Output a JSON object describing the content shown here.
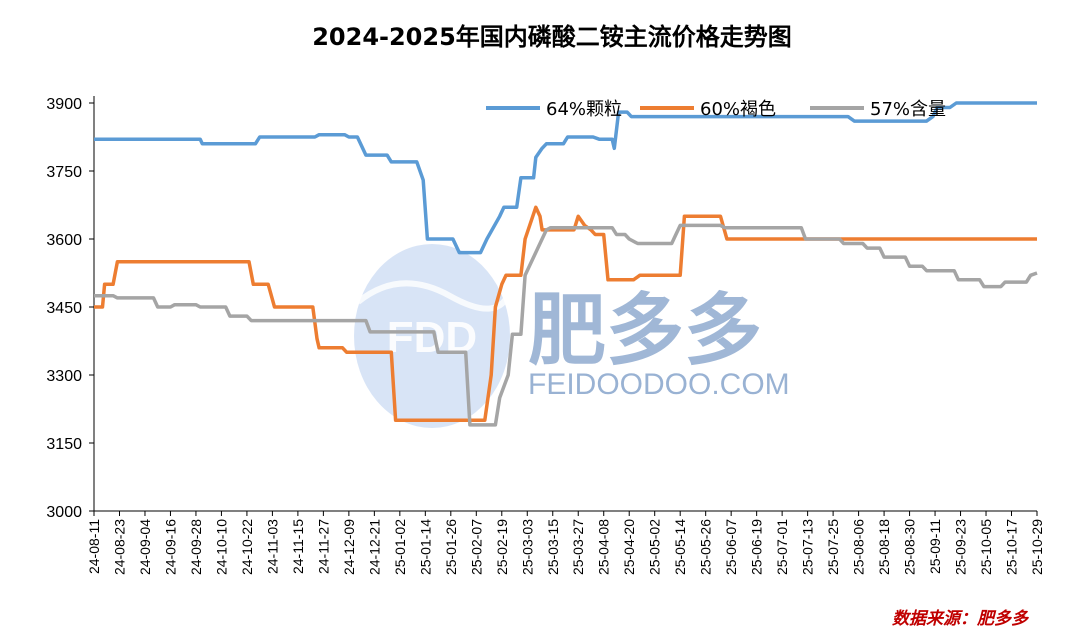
{
  "chart_data": {
    "type": "line",
    "title": "2024-2025年国内磷酸二铵主流价格走势图",
    "source": "数据来源：肥多多",
    "watermark": {
      "logo_text": "FDD",
      "brand_cn": "肥多多",
      "brand_en": "FEIDOODOO.COM"
    },
    "ylim": [
      3000,
      3900
    ],
    "yticks": [
      3000,
      3150,
      3300,
      3450,
      3600,
      3750,
      3900
    ],
    "xlabels": [
      "24-08-11",
      "24-08-23",
      "24-09-04",
      "24-09-16",
      "24-09-28",
      "24-10-10",
      "24-10-22",
      "24-11-03",
      "24-11-15",
      "24-11-27",
      "24-12-09",
      "24-12-21",
      "25-01-02",
      "25-01-14",
      "25-01-26",
      "25-02-07",
      "25-02-19",
      "25-03-03",
      "25-03-15",
      "25-03-27",
      "25-04-08",
      "25-04-20",
      "25-05-02",
      "25-05-14",
      "25-05-26",
      "25-06-07",
      "25-06-19",
      "25-07-01",
      "25-07-13",
      "25-07-25",
      "25-08-06",
      "25-08-18",
      "25-08-30",
      "25-09-11",
      "25-09-23",
      "25-10-05",
      "25-10-17",
      "25-10-29"
    ],
    "legend_position": "top-right",
    "grid": false,
    "series": [
      {
        "name": "64%颗粒",
        "color": "#5b9bd5",
        "points": [
          [
            "24-08-11",
            3820
          ],
          [
            "24-09-30",
            3820
          ],
          [
            "24-10-01",
            3810
          ],
          [
            "24-10-26",
            3810
          ],
          [
            "24-10-28",
            3825
          ],
          [
            "24-11-23",
            3825
          ],
          [
            "24-11-25",
            3830
          ],
          [
            "24-12-07",
            3830
          ],
          [
            "24-12-09",
            3825
          ],
          [
            "24-12-13",
            3825
          ],
          [
            "24-12-17",
            3785
          ],
          [
            "24-12-27",
            3785
          ],
          [
            "24-12-29",
            3770
          ],
          [
            "25-01-10",
            3770
          ],
          [
            "25-01-13",
            3730
          ],
          [
            "25-01-15",
            3600
          ],
          [
            "25-01-27",
            3600
          ],
          [
            "25-01-30",
            3570
          ],
          [
            "25-02-09",
            3570
          ],
          [
            "25-02-12",
            3600
          ],
          [
            "25-02-18",
            3650
          ],
          [
            "25-02-20",
            3670
          ],
          [
            "25-02-26",
            3670
          ],
          [
            "25-02-28",
            3735
          ],
          [
            "25-03-06",
            3735
          ],
          [
            "25-03-07",
            3780
          ],
          [
            "25-03-10",
            3800
          ],
          [
            "25-03-12",
            3810
          ],
          [
            "25-03-20",
            3810
          ],
          [
            "25-03-22",
            3825
          ],
          [
            "25-04-03",
            3825
          ],
          [
            "25-04-06",
            3820
          ],
          [
            "25-04-12",
            3820
          ],
          [
            "25-04-13",
            3800
          ],
          [
            "25-04-15",
            3880
          ],
          [
            "25-04-19",
            3880
          ],
          [
            "25-04-21",
            3870
          ],
          [
            "25-07-24",
            3870
          ],
          [
            "25-08-01",
            3870
          ],
          [
            "25-08-04",
            3860
          ],
          [
            "25-09-07",
            3860
          ],
          [
            "25-09-10",
            3870
          ],
          [
            "25-09-12",
            3890
          ],
          [
            "25-09-18",
            3890
          ],
          [
            "25-09-21",
            3900
          ],
          [
            "25-10-29",
            3900
          ]
        ]
      },
      {
        "name": "60%褐色",
        "color": "#ed7d31",
        "points": [
          [
            "24-08-11",
            3450
          ],
          [
            "24-08-15",
            3450
          ],
          [
            "24-08-16",
            3500
          ],
          [
            "24-08-20",
            3500
          ],
          [
            "24-08-22",
            3550
          ],
          [
            "24-10-23",
            3550
          ],
          [
            "24-10-25",
            3500
          ],
          [
            "24-11-01",
            3500
          ],
          [
            "24-11-04",
            3450
          ],
          [
            "24-11-22",
            3450
          ],
          [
            "24-11-24",
            3380
          ],
          [
            "24-11-25",
            3360
          ],
          [
            "24-12-06",
            3360
          ],
          [
            "24-12-08",
            3350
          ],
          [
            "24-12-29",
            3350
          ],
          [
            "24-12-31",
            3200
          ],
          [
            "25-02-11",
            3200
          ],
          [
            "25-02-14",
            3300
          ],
          [
            "25-02-16",
            3450
          ],
          [
            "25-02-19",
            3500
          ],
          [
            "25-02-21",
            3520
          ],
          [
            "25-02-28",
            3520
          ],
          [
            "25-03-02",
            3600
          ],
          [
            "25-03-07",
            3670
          ],
          [
            "25-03-09",
            3650
          ],
          [
            "25-03-10",
            3620
          ],
          [
            "25-03-25",
            3620
          ],
          [
            "25-03-27",
            3650
          ],
          [
            "25-03-30",
            3630
          ],
          [
            "25-04-02",
            3620
          ],
          [
            "25-04-04",
            3610
          ],
          [
            "25-04-08",
            3610
          ],
          [
            "25-04-10",
            3510
          ],
          [
            "25-04-22",
            3510
          ],
          [
            "25-04-25",
            3520
          ],
          [
            "25-05-14",
            3520
          ],
          [
            "25-05-16",
            3650
          ],
          [
            "25-06-02",
            3650
          ],
          [
            "25-06-05",
            3600
          ],
          [
            "25-10-29",
            3600
          ]
        ]
      },
      {
        "name": "57%含量",
        "color": "#a5a5a5",
        "points": [
          [
            "24-08-11",
            3475
          ],
          [
            "24-08-20",
            3475
          ],
          [
            "24-08-22",
            3470
          ],
          [
            "24-09-08",
            3470
          ],
          [
            "24-09-10",
            3450
          ],
          [
            "24-09-16",
            3450
          ],
          [
            "24-09-18",
            3455
          ],
          [
            "24-09-28",
            3455
          ],
          [
            "24-09-30",
            3450
          ],
          [
            "24-10-12",
            3450
          ],
          [
            "24-10-14",
            3430
          ],
          [
            "24-10-22",
            3430
          ],
          [
            "24-10-24",
            3420
          ],
          [
            "24-12-17",
            3420
          ],
          [
            "24-12-19",
            3395
          ],
          [
            "25-01-18",
            3395
          ],
          [
            "25-01-20",
            3350
          ],
          [
            "25-02-02",
            3350
          ],
          [
            "25-02-04",
            3190
          ],
          [
            "25-02-16",
            3190
          ],
          [
            "25-02-18",
            3250
          ],
          [
            "25-02-22",
            3300
          ],
          [
            "25-02-24",
            3390
          ],
          [
            "25-02-28",
            3390
          ],
          [
            "25-03-02",
            3520
          ],
          [
            "25-03-10",
            3600
          ],
          [
            "25-03-12",
            3620
          ],
          [
            "25-03-14",
            3625
          ],
          [
            "25-04-12",
            3625
          ],
          [
            "25-04-14",
            3610
          ],
          [
            "25-04-18",
            3610
          ],
          [
            "25-04-20",
            3600
          ],
          [
            "25-04-24",
            3590
          ],
          [
            "25-05-10",
            3590
          ],
          [
            "25-05-12",
            3610
          ],
          [
            "25-05-14",
            3630
          ],
          [
            "25-06-02",
            3630
          ],
          [
            "25-06-04",
            3625
          ],
          [
            "25-07-10",
            3625
          ],
          [
            "25-07-12",
            3600
          ],
          [
            "25-07-28",
            3600
          ],
          [
            "25-07-30",
            3590
          ],
          [
            "25-08-08",
            3590
          ],
          [
            "25-08-10",
            3580
          ],
          [
            "25-08-16",
            3580
          ],
          [
            "25-08-18",
            3560
          ],
          [
            "25-08-28",
            3560
          ],
          [
            "25-08-30",
            3540
          ],
          [
            "25-09-05",
            3540
          ],
          [
            "25-09-07",
            3530
          ],
          [
            "25-09-20",
            3530
          ],
          [
            "25-09-22",
            3510
          ],
          [
            "25-10-02",
            3510
          ],
          [
            "25-10-04",
            3495
          ],
          [
            "25-10-12",
            3495
          ],
          [
            "25-10-14",
            3505
          ],
          [
            "25-10-24",
            3505
          ],
          [
            "25-10-26",
            3520
          ],
          [
            "25-10-29",
            3525
          ]
        ]
      }
    ]
  }
}
